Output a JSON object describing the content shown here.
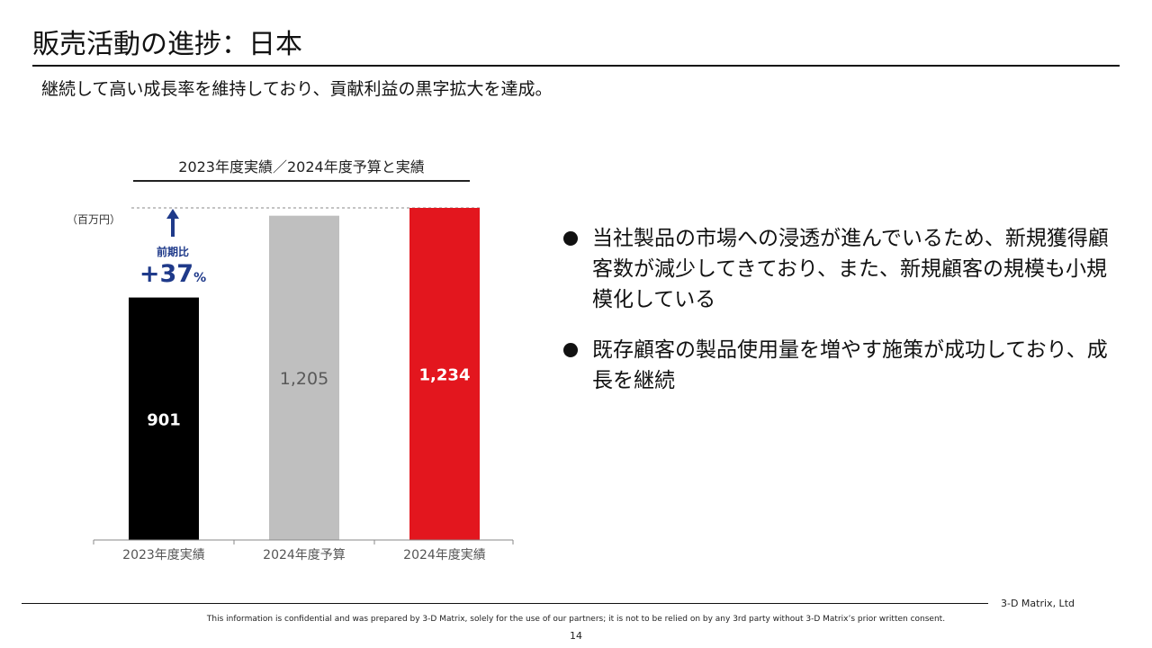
{
  "header": {
    "title": "販売活動の進捗：日本",
    "subtitle": "継続して高い成長率を維持しており、貢献利益の黒字拡大を達成。"
  },
  "chart_data": {
    "type": "bar",
    "title": "2023年度実績／2024年度予算と実績",
    "unit_label": "（百万円）",
    "categories": [
      "2023年度実績",
      "2024年度予算",
      "2024年度実績"
    ],
    "values": [
      901,
      1205,
      1234
    ],
    "value_labels": [
      "901",
      "1,205",
      "1,234"
    ],
    "colors": [
      "#000000",
      "#bfbfbf",
      "#e3161e"
    ],
    "label_colors": [
      "#ffffff",
      "#595959",
      "#ffffff"
    ],
    "ylim": [
      0,
      1234
    ],
    "grid": false,
    "annotation": {
      "label": "前期比",
      "value": "+37",
      "unit": "%",
      "color": "#1f3a8a"
    }
  },
  "bullets": [
    {
      "text": "当社製品の市場への浸透が進んでいるため、新規獲得顧客数が減少してきており、また、新規顧客の規模も小規模化している"
    },
    {
      "text": "既存顧客の製品使用量を増やす施策が成功しており、成長を継続"
    }
  ],
  "footer": {
    "company": "3-D Matrix, Ltd",
    "confidential": "This information is confidential and was prepared by 3-D Matrix, solely for the use of our partners; it is not to be relied on by any 3rd party without 3-D Matrix’s prior written consent.",
    "page_number": "14"
  }
}
